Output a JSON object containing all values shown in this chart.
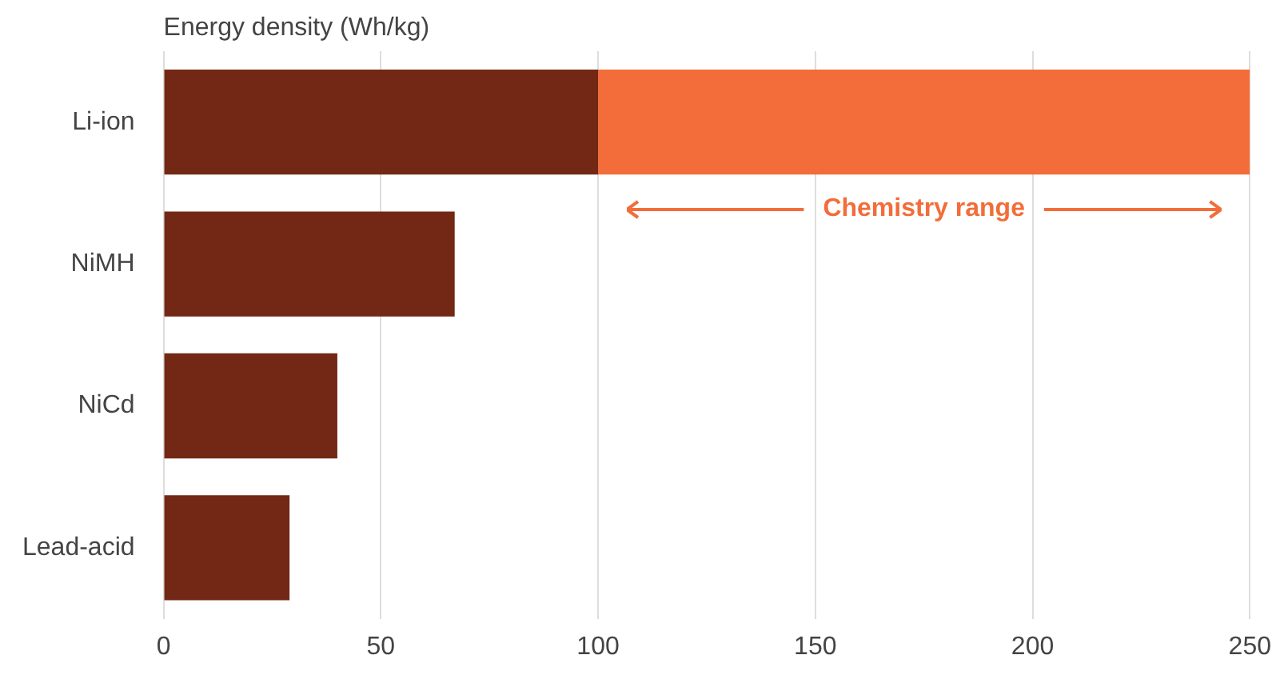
{
  "chart_data": {
    "type": "bar",
    "orientation": "horizontal",
    "stacked": true,
    "xlabel": "Energy density (Wh/kg)",
    "categories": [
      "Li-ion",
      "NiMH",
      "NiCd",
      "Lead-acid"
    ],
    "series": [
      {
        "color": "#722814",
        "values": [
          100,
          67,
          40,
          29
        ]
      },
      {
        "color": "#f26d3a",
        "values": [
          150,
          null,
          null,
          null
        ]
      }
    ],
    "xlim": [
      0,
      250
    ],
    "xticks": [
      0,
      50,
      100,
      150,
      200,
      250
    ],
    "grid": "x",
    "legend": false,
    "annotations": [
      "Chemistry range"
    ]
  }
}
